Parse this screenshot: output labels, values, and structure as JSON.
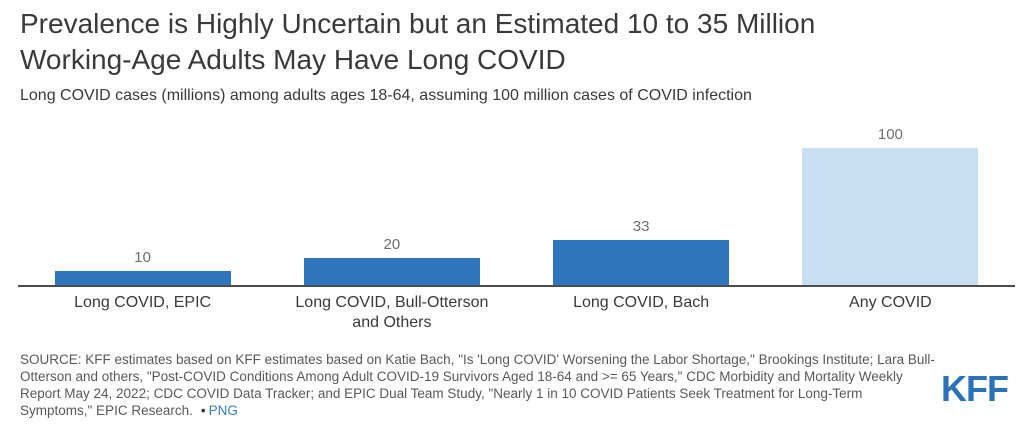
{
  "header": {
    "title_line1": "Prevalence is Highly Uncertain but an Estimated 10 to 35 Million",
    "title_line2": "Working-Age Adults May Have Long COVID",
    "subtitle": "Long COVID cases (millions) among adults ages 18-64, assuming 100 million cases of COVID infection"
  },
  "chart_data": {
    "type": "bar",
    "title": "Prevalence is Highly Uncertain but an Estimated 10 to 35 Million Working-Age Adults May Have Long COVID",
    "subtitle": "Long COVID cases (millions) among adults ages 18-64, assuming 100 million cases of COVID infection",
    "categories": [
      "Long COVID, EPIC",
      "Long COVID, Bull-Otterson and Others",
      "Long COVID, Bach",
      "Any COVID"
    ],
    "values": [
      10,
      20,
      33,
      100
    ],
    "value_labels": [
      "10",
      "20",
      "33",
      "100"
    ],
    "bar_colors": [
      "#2f75bc",
      "#2f75bc",
      "#2f75bc",
      "#c8def1"
    ],
    "xlabel": "",
    "ylabel": "",
    "ylim": [
      0,
      100
    ],
    "grid": false,
    "legend": false,
    "orientation": "vertical"
  },
  "footer": {
    "source_text": "SOURCE: KFF estimates based on KFF estimates based on Katie Bach, \"Is 'Long COVID' Worsening the Labor Shortage,\" Brookings Institute; Lara Bull-Otterson and others, \"Post-COVID Conditions Among Adult COVID-19 Survivors Aged 18-64 and >= 65 Years,\" CDC Morbidity and Mortality Weekly Report May 24, 2022; CDC COVID Data Tracker; and EPIC Dual Team Study, \"Nearly 1 in 10 COVID Patients Seek Treatment for Long-Term Symptoms,\" EPIC Research.",
    "bullet": "•",
    "png_link": "PNG",
    "logo": "KFF"
  },
  "colors": {
    "bar_dark_blue": "#2f75bc",
    "bar_light_blue": "#c8def1",
    "axis": "#4d4d4d",
    "title_text": "#3a3a3a",
    "value_label_text": "#6e6e6e",
    "source_text": "#595959",
    "link_blue": "#3a7dbf",
    "logo_blue": "#2a72b9",
    "background": "#ffffff"
  }
}
